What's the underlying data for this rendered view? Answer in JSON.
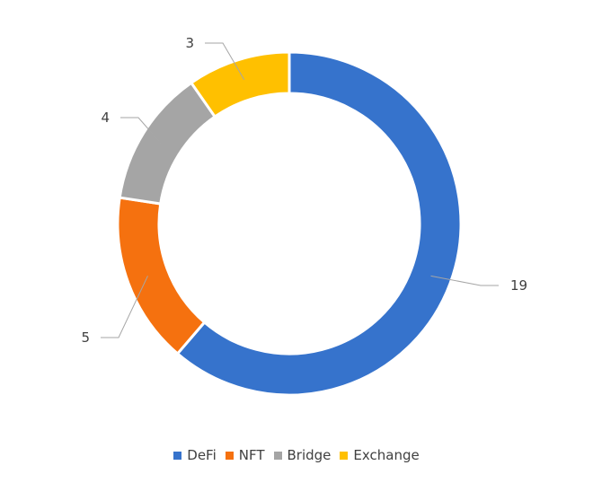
{
  "chart_data": {
    "type": "pie",
    "donut": true,
    "categories": [
      "DeFi",
      "NFT",
      "Bridge",
      "Exchange"
    ],
    "values": [
      19,
      5,
      4,
      3
    ],
    "colors": [
      "#3673cc",
      "#f5710f",
      "#a5a5a5",
      "#ffc000"
    ],
    "legend_position": "bottom"
  }
}
